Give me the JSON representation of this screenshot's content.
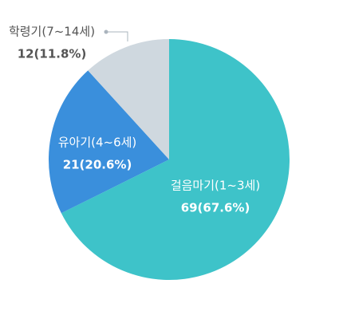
{
  "chart_data": {
    "type": "pie",
    "categories": [
      "걸음마기(1~3세)",
      "유아기(4~6세)",
      "학령기(7~14세)"
    ],
    "values": [
      69,
      21,
      12
    ],
    "value_labels": [
      "69(67.6%)",
      "21(20.6%)",
      "12(11.8%)"
    ],
    "colors": [
      "#3ec3c9",
      "#3a8fdc",
      "#cfd8df"
    ]
  }
}
